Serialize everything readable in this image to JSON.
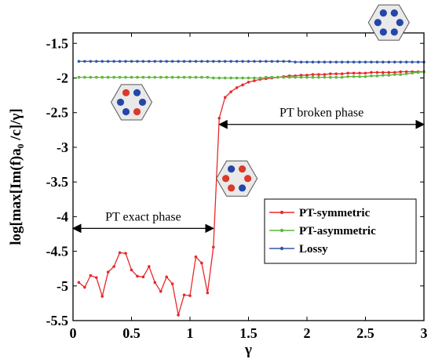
{
  "chart_data": {
    "type": "line",
    "title": "",
    "xlabel": "γ",
    "ylabel": "log[max[Im(f)a₀ /c]/γ]",
    "xlim": [
      0,
      3
    ],
    "ylim": [
      -5.5,
      -1.35
    ],
    "xticks": [
      0,
      0.5,
      1,
      1.5,
      2,
      2.5,
      3
    ],
    "xtick_labels": [
      "0",
      "0.5",
      "1",
      "1.5",
      "2",
      "2.5",
      "3"
    ],
    "yticks": [
      -1.5,
      -2,
      -2.5,
      -3,
      -3.5,
      -4,
      -4.5,
      -5,
      -5.5
    ],
    "ytick_labels": [
      "-1.5",
      "-2",
      "-2.5",
      "-3",
      "-3.5",
      "-4",
      "-4.5",
      "-5",
      "-5.5"
    ],
    "grid": false,
    "legend_position": "lower-right",
    "series": [
      {
        "name": "PT-symmetric",
        "color": "#e8282b",
        "x": [
          0.05,
          0.1,
          0.15,
          0.2,
          0.25,
          0.3,
          0.35,
          0.4,
          0.45,
          0.5,
          0.55,
          0.6,
          0.65,
          0.7,
          0.75,
          0.8,
          0.85,
          0.9,
          0.95,
          1.0,
          1.05,
          1.1,
          1.15,
          1.2,
          1.25,
          1.3,
          1.35,
          1.4,
          1.45,
          1.5,
          1.55,
          1.6,
          1.65,
          1.7,
          1.75,
          1.8,
          1.85,
          1.9,
          1.95,
          2.0,
          2.05,
          2.1,
          2.15,
          2.2,
          2.25,
          2.3,
          2.35,
          2.4,
          2.45,
          2.5,
          2.55,
          2.6,
          2.65,
          2.7,
          2.75,
          2.8,
          2.85,
          2.9,
          2.95,
          3.0
        ],
        "y": [
          -4.95,
          -5.02,
          -4.85,
          -4.88,
          -5.15,
          -4.8,
          -4.72,
          -4.52,
          -4.53,
          -4.77,
          -4.86,
          -4.87,
          -4.72,
          -4.95,
          -5.08,
          -4.87,
          -4.97,
          -5.42,
          -5.13,
          -5.14,
          -4.58,
          -4.67,
          -5.1,
          -4.44,
          -2.58,
          -2.28,
          -2.2,
          -2.14,
          -2.1,
          -2.06,
          -2.04,
          -2.02,
          -2.01,
          -2.0,
          -1.99,
          -1.98,
          -1.97,
          -1.97,
          -1.96,
          -1.96,
          -1.95,
          -1.95,
          -1.95,
          -1.94,
          -1.94,
          -1.94,
          -1.93,
          -1.93,
          -1.93,
          -1.93,
          -1.92,
          -1.92,
          -1.92,
          -1.92,
          -1.92,
          -1.91,
          -1.91,
          -1.91,
          -1.91,
          -1.91
        ]
      },
      {
        "name": "PT-asymmetric",
        "color": "#5cb83a",
        "x": [
          0.05,
          0.1,
          0.15,
          0.2,
          0.25,
          0.3,
          0.35,
          0.4,
          0.45,
          0.5,
          0.55,
          0.6,
          0.65,
          0.7,
          0.75,
          0.8,
          0.85,
          0.9,
          0.95,
          1.0,
          1.05,
          1.1,
          1.15,
          1.2,
          1.25,
          1.3,
          1.35,
          1.4,
          1.45,
          1.5,
          1.55,
          1.6,
          1.65,
          1.7,
          1.75,
          1.8,
          1.85,
          1.9,
          1.95,
          2.0,
          2.05,
          2.1,
          2.15,
          2.2,
          2.25,
          2.3,
          2.35,
          2.4,
          2.45,
          2.5,
          2.55,
          2.6,
          2.65,
          2.7,
          2.75,
          2.8,
          2.85,
          2.9,
          2.95,
          3.0
        ],
        "y": [
          -1.99,
          -1.99,
          -1.99,
          -1.99,
          -1.99,
          -1.99,
          -1.99,
          -1.99,
          -1.99,
          -1.99,
          -1.99,
          -1.99,
          -1.99,
          -1.99,
          -1.99,
          -1.99,
          -1.99,
          -1.99,
          -1.99,
          -1.99,
          -1.99,
          -1.99,
          -1.99,
          -2.0,
          -2.0,
          -2.0,
          -2.0,
          -2.0,
          -2.0,
          -2.0,
          -2.0,
          -2.0,
          -1.99,
          -1.99,
          -1.99,
          -1.99,
          -1.99,
          -1.99,
          -1.99,
          -1.99,
          -1.99,
          -1.99,
          -1.99,
          -1.99,
          -1.99,
          -1.99,
          -1.98,
          -1.98,
          -1.98,
          -1.98,
          -1.97,
          -1.97,
          -1.96,
          -1.96,
          -1.95,
          -1.95,
          -1.94,
          -1.93,
          -1.92,
          -1.91
        ]
      },
      {
        "name": "Lossy",
        "color": "#3355a8",
        "x": [
          0.05,
          0.1,
          0.15,
          0.2,
          0.25,
          0.3,
          0.35,
          0.4,
          0.45,
          0.5,
          0.55,
          0.6,
          0.65,
          0.7,
          0.75,
          0.8,
          0.85,
          0.9,
          0.95,
          1.0,
          1.05,
          1.1,
          1.15,
          1.2,
          1.25,
          1.3,
          1.35,
          1.4,
          1.45,
          1.5,
          1.55,
          1.6,
          1.65,
          1.7,
          1.75,
          1.8,
          1.85,
          1.9,
          1.95,
          2.0,
          2.05,
          2.1,
          2.15,
          2.2,
          2.25,
          2.3,
          2.35,
          2.4,
          2.45,
          2.5,
          2.55,
          2.6,
          2.65,
          2.7,
          2.75,
          2.8,
          2.85,
          2.9,
          2.95,
          3.0
        ],
        "y": [
          -1.76,
          -1.76,
          -1.76,
          -1.76,
          -1.76,
          -1.76,
          -1.76,
          -1.76,
          -1.76,
          -1.76,
          -1.76,
          -1.76,
          -1.76,
          -1.76,
          -1.76,
          -1.76,
          -1.76,
          -1.76,
          -1.76,
          -1.76,
          -1.76,
          -1.76,
          -1.76,
          -1.76,
          -1.76,
          -1.76,
          -1.76,
          -1.76,
          -1.76,
          -1.76,
          -1.76,
          -1.76,
          -1.76,
          -1.76,
          -1.76,
          -1.76,
          -1.76,
          -1.77,
          -1.77,
          -1.77,
          -1.77,
          -1.77,
          -1.77,
          -1.77,
          -1.77,
          -1.77,
          -1.77,
          -1.77,
          -1.77,
          -1.77,
          -1.77,
          -1.77,
          -1.77,
          -1.77,
          -1.77,
          -1.77,
          -1.77,
          -1.77,
          -1.77,
          -1.77
        ]
      }
    ],
    "annotations": [
      {
        "text": "PT exact phase",
        "x_from": 0.0,
        "x_to": 1.2,
        "y": -4.17
      },
      {
        "text": "PT broken phase",
        "x_from": 1.25,
        "x_to": 3.0,
        "y": -2.67
      }
    ],
    "insets": [
      {
        "name": "hexagon-inset-top",
        "x": 2.7,
        "y": -1.2,
        "colors": [
          "#2446a8",
          "#2446a8",
          "#2446a8",
          "#2446a8",
          "#2446a8",
          "#2446a8"
        ]
      },
      {
        "name": "hexagon-inset-left",
        "x": 0.5,
        "y": -2.35,
        "colors": [
          "#2446a8",
          "#2446a8",
          "#d93a2a",
          "#2446a8",
          "#2446a8",
          "#d93a2a"
        ]
      },
      {
        "name": "hexagon-inset-middle",
        "x": 1.4,
        "y": -3.45,
        "colors": [
          "#d93a2a",
          "#d93a2a",
          "#2446a8",
          "#d93a2a",
          "#d93a2a",
          "#2446a8"
        ]
      }
    ]
  }
}
